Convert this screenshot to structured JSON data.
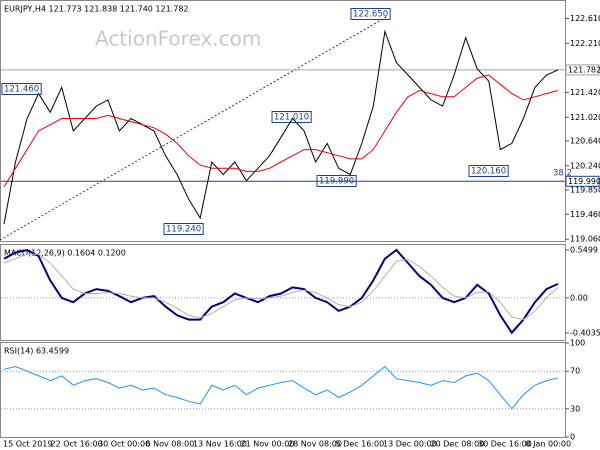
{
  "chart_data": [
    {
      "type": "line",
      "title": "EURJPY,H4  121.773 121.838 121.740 121.782",
      "watermark": "ActionForex.com",
      "ylim": [
        119.03,
        122.89
      ],
      "yticks": [
        {
          "value": 122.61,
          "label": "122.610"
        },
        {
          "value": 122.21,
          "label": "122.210"
        },
        {
          "value": 121.42,
          "label": "121.420"
        },
        {
          "value": 121.02,
          "label": "121.020"
        },
        {
          "value": 120.64,
          "label": "120.640"
        },
        {
          "value": 120.24,
          "label": "120.240"
        },
        {
          "value": 119.85,
          "label": "119.850"
        },
        {
          "value": 119.46,
          "label": "119.460"
        },
        {
          "value": 119.06,
          "label": "119.060"
        }
      ],
      "hlines": [
        {
          "value": 121.782,
          "color": "#a0a0a0"
        },
        {
          "value": 119.99,
          "label": "119.990",
          "color": "#1f3f8f"
        }
      ],
      "annotations": [
        "122.650",
        "121.460",
        "121.010",
        "119.990",
        "119.240",
        "120.160",
        "38.2"
      ],
      "series": [
        {
          "color": "#000000",
          "values": [
            119.3,
            120.3,
            121.0,
            121.4,
            121.1,
            121.5,
            120.8,
            121.0,
            121.2,
            121.3,
            120.8,
            121.0,
            120.9,
            120.8,
            120.4,
            120.1,
            119.7,
            119.4,
            120.3,
            120.1,
            120.3,
            120.0,
            120.2,
            120.4,
            120.7,
            121.0,
            120.8,
            120.3,
            120.6,
            120.2,
            120.1,
            120.6,
            121.2,
            122.4,
            121.9,
            121.7,
            121.5,
            121.3,
            121.2,
            121.7,
            122.3,
            121.8,
            121.6,
            120.5,
            120.6,
            121.0,
            121.5,
            121.7,
            121.782
          ]
        },
        {
          "color": "#e8000b",
          "values": [
            119.9,
            120.2,
            120.5,
            120.8,
            120.9,
            121.0,
            121.0,
            121.0,
            121.0,
            121.05,
            121.0,
            120.95,
            120.9,
            120.85,
            120.75,
            120.6,
            120.4,
            120.25,
            120.2,
            120.2,
            120.2,
            120.15,
            120.15,
            120.2,
            120.3,
            120.4,
            120.5,
            120.5,
            120.45,
            120.4,
            120.35,
            120.35,
            120.5,
            120.8,
            121.1,
            121.35,
            121.45,
            121.4,
            121.35,
            121.35,
            121.5,
            121.65,
            121.7,
            121.55,
            121.4,
            121.3,
            121.35,
            121.4,
            121.45
          ]
        }
      ]
    },
    {
      "type": "line",
      "title": "MACD(12,26,9) 0.1604 0.1200",
      "ylim": [
        -0.484,
        0.607
      ],
      "yticks": [
        0.5499,
        {
          "value": 0,
          "label": "0.00"
        },
        -0.4035
      ],
      "levels": [
        0
      ],
      "series": [
        {
          "color": "#000080",
          "width": 2,
          "values": [
            0.45,
            0.52,
            0.55,
            0.48,
            0.2,
            0.0,
            -0.05,
            0.05,
            0.1,
            0.08,
            0.02,
            -0.05,
            0.0,
            0.02,
            -0.1,
            -0.2,
            -0.25,
            -0.25,
            -0.1,
            -0.05,
            0.05,
            0.0,
            -0.05,
            0.02,
            0.05,
            0.12,
            0.1,
            0.0,
            -0.05,
            -0.15,
            -0.1,
            0.0,
            0.2,
            0.45,
            0.55,
            0.4,
            0.25,
            0.15,
            0.0,
            -0.05,
            0.0,
            0.15,
            0.05,
            -0.2,
            -0.4,
            -0.25,
            -0.05,
            0.1,
            0.16
          ]
        },
        {
          "color": "#b0b0b0",
          "width": 1,
          "values": [
            0.4,
            0.45,
            0.5,
            0.5,
            0.4,
            0.25,
            0.1,
            0.05,
            0.05,
            0.06,
            0.05,
            0.02,
            0.0,
            0.0,
            -0.05,
            -0.12,
            -0.2,
            -0.23,
            -0.18,
            -0.1,
            -0.02,
            0.0,
            -0.01,
            0.0,
            0.02,
            0.06,
            0.09,
            0.06,
            0.0,
            -0.08,
            -0.1,
            -0.05,
            0.08,
            0.25,
            0.42,
            0.44,
            0.36,
            0.25,
            0.12,
            0.02,
            0.0,
            0.06,
            0.07,
            -0.05,
            -0.22,
            -0.25,
            -0.15,
            0.0,
            0.12
          ]
        }
      ]
    },
    {
      "type": "line",
      "title": "RSI(14) 63.4599",
      "ylim": [
        0,
        100
      ],
      "yticks": [
        100,
        70,
        30,
        0
      ],
      "levels": [
        70,
        30
      ],
      "x_axis_labels": [
        "15 Oct 2019",
        "22 Oct 16:00",
        "30 Oct 00:00",
        "6 Nov 08:00",
        "13 Nov 16:00",
        "21 Nov 00:00",
        "28 Nov 08:00",
        "5 Dec 16:00",
        "13 Dec 00:00",
        "20 Dec 08:00",
        "30 Dec 16:00",
        "8 Jan 00:00"
      ],
      "series": [
        {
          "color": "#1e90ff",
          "width": 1,
          "values": [
            72,
            75,
            70,
            65,
            60,
            65,
            55,
            60,
            62,
            58,
            52,
            55,
            50,
            52,
            45,
            42,
            38,
            35,
            55,
            50,
            55,
            45,
            52,
            55,
            58,
            60,
            52,
            45,
            50,
            42,
            48,
            55,
            65,
            75,
            62,
            60,
            58,
            55,
            60,
            58,
            65,
            68,
            60,
            45,
            30,
            45,
            55,
            60,
            63
          ]
        }
      ]
    }
  ]
}
